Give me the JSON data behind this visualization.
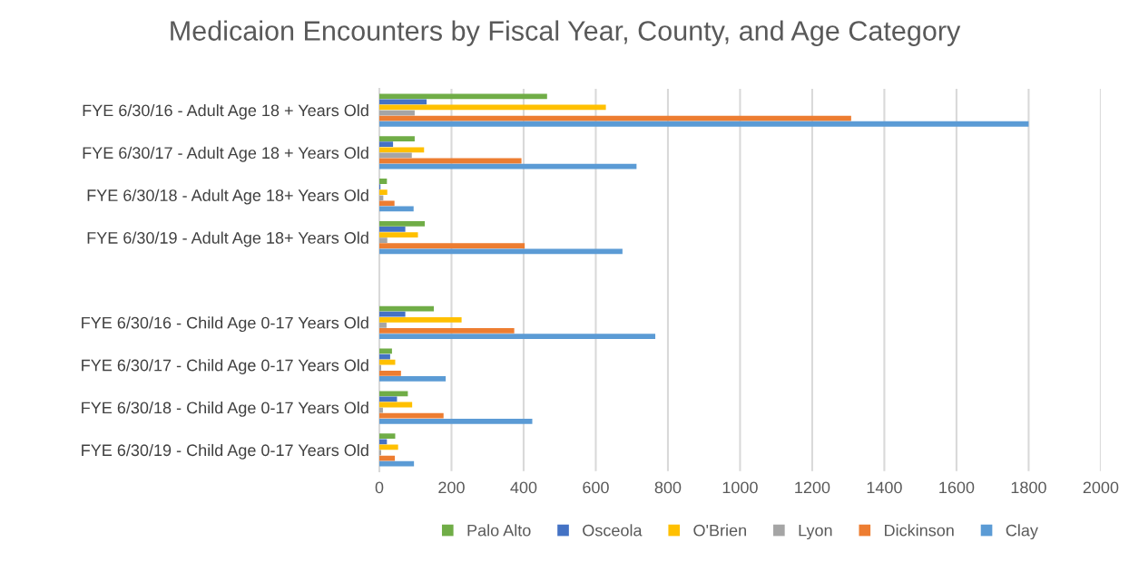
{
  "chart_data": {
    "type": "bar",
    "orientation": "horizontal",
    "title": "Medicaion Encounters by Fiscal Year, County, and Age Category",
    "categories": [
      "FYE 6/30/16 - Adult Age 18 + Years Old",
      "FYE 6/30/17 - Adult Age 18 + Years Old",
      "FYE 6/30/18 - Adult Age 18+ Years Old",
      "FYE 6/30/19 - Adult Age 18+ Years Old",
      null,
      "FYE 6/30/16 - Child Age 0-17 Years Old",
      "FYE 6/30/17 - Child Age 0-17 Years Old",
      "FYE 6/30/18 - Child Age 0-17 Years Old",
      "FYE 6/30/19 - Child Age 0-17 Years Old"
    ],
    "series": [
      {
        "name": "Palo Alto",
        "color": "#70ad47",
        "values": [
          465,
          98,
          21,
          126,
          null,
          151,
          35,
          79,
          44
        ]
      },
      {
        "name": "Osceola",
        "color": "#4472c4",
        "values": [
          131,
          38,
          3,
          72,
          null,
          72,
          30,
          49,
          21
        ]
      },
      {
        "name": "O'Brien",
        "color": "#ffc000",
        "values": [
          628,
          124,
          22,
          107,
          null,
          228,
          44,
          91,
          52
        ]
      },
      {
        "name": "Lyon",
        "color": "#a5a5a5",
        "values": [
          98,
          90,
          11,
          22,
          null,
          20,
          5,
          10,
          5
        ]
      },
      {
        "name": "Dickinson",
        "color": "#ed7d31",
        "values": [
          1308,
          394,
          42,
          403,
          null,
          374,
          60,
          178,
          43
        ]
      },
      {
        "name": "Clay",
        "color": "#5b9bd5",
        "values": [
          1800,
          713,
          95,
          674,
          null,
          765,
          184,
          424,
          96
        ]
      }
    ],
    "xlim": [
      0,
      2000
    ],
    "xticks": [
      0,
      200,
      400,
      600,
      800,
      1000,
      1200,
      1400,
      1600,
      1800,
      2000
    ],
    "grid": "x",
    "legend": "bottom"
  }
}
